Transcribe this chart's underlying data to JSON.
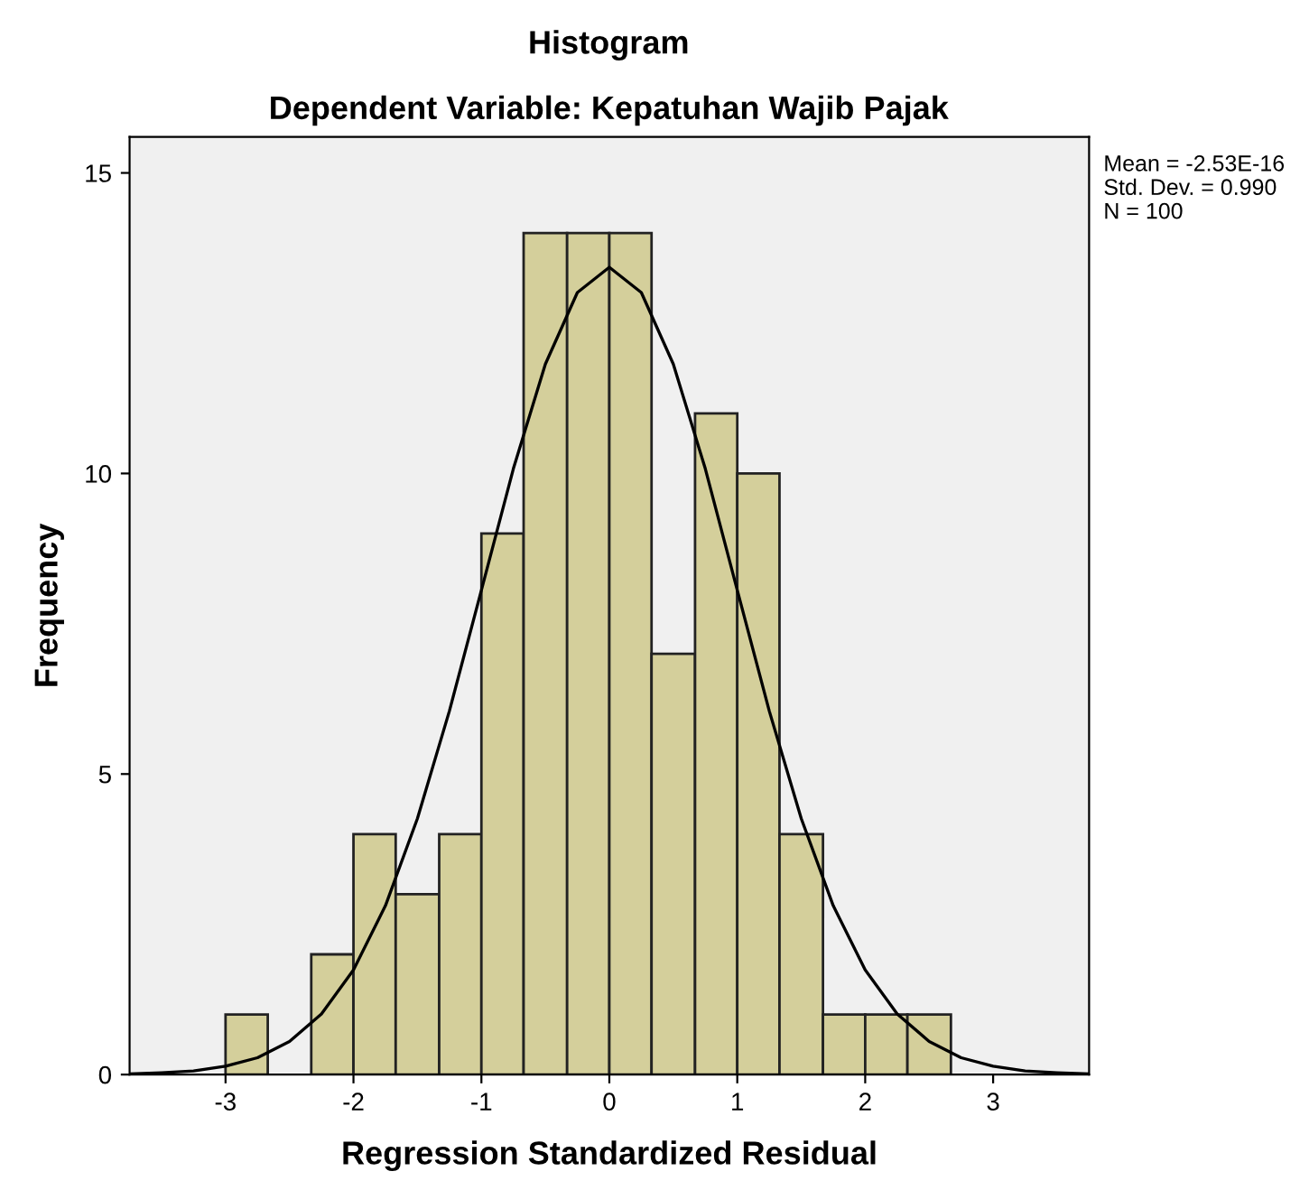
{
  "chart_data": {
    "type": "histogram",
    "title": "Histogram",
    "subtitle": "Dependent Variable: Kepatuhan Wajib Pajak",
    "xlabel": "Regression Standardized Residual",
    "ylabel": "Frequency",
    "annotations": [
      "Mean = -2.53E-16",
      "Std. Dev. = 0.990",
      "N = 100"
    ],
    "xlim": [
      -3.75,
      3.75
    ],
    "xticks": [
      -3,
      -2,
      -1,
      0,
      1,
      2,
      3
    ],
    "ylim": [
      0,
      15.6
    ],
    "yticks": [
      0,
      5,
      10,
      15
    ],
    "grid": false,
    "legend": false,
    "series": [
      {
        "color": "#d4cf9b",
        "bins": [
          -3,
          -2.67,
          -2.33,
          -2,
          -1.67,
          -1.33,
          -1,
          -0.67,
          -0.33,
          0,
          0.33,
          0.67,
          1,
          1.33,
          1.67,
          2,
          2.33,
          2.67
        ],
        "values": [
          1,
          0,
          2,
          4,
          3,
          4,
          9,
          14,
          14,
          14,
          7,
          11,
          10,
          4,
          1,
          1,
          1
        ]
      },
      {
        "type": "line",
        "color": "#000000",
        "x": [
          -3.75,
          -3.5,
          -3.25,
          -3,
          -2.75,
          -2.5,
          -2.25,
          -2,
          -1.75,
          -1.5,
          -1.25,
          -1,
          -0.75,
          -0.5,
          -0.25,
          0,
          0.25,
          0.5,
          0.75,
          1,
          1.25,
          1.5,
          1.75,
          2,
          2.25,
          2.5,
          2.75,
          3,
          3.25,
          3.5,
          3.75
        ],
        "values": [
          0.01,
          0.03,
          0.06,
          0.14,
          0.28,
          0.55,
          1.01,
          1.74,
          2.81,
          4.26,
          6.05,
          8.06,
          10.08,
          11.82,
          13.01,
          13.43,
          13.01,
          11.82,
          10.08,
          8.06,
          6.05,
          4.26,
          2.81,
          1.74,
          1.01,
          0.55,
          0.28,
          0.14,
          0.06,
          0.03,
          0.01
        ]
      }
    ]
  }
}
